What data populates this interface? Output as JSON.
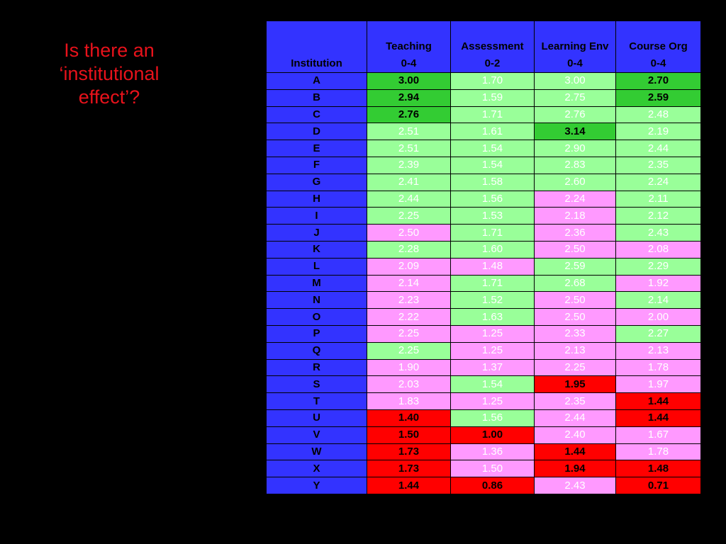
{
  "title": {
    "line1": "Is there an",
    "line2": "‘institutional",
    "line3": "effect’?"
  },
  "colors": {
    "background": "#000000",
    "title": "#e8121b",
    "header": "#3333ff",
    "high": "#33cc33",
    "good": "#99ff99",
    "fair": "#ff99ff",
    "low": "#ff0000"
  },
  "table": {
    "columns": [
      {
        "name": "Institution",
        "range": ""
      },
      {
        "name": "Teaching",
        "range": "0-4"
      },
      {
        "name": "Assessment",
        "range": "0-2"
      },
      {
        "name": "Learning Env",
        "range": "0-4"
      },
      {
        "name": "Course Org",
        "range": "0-4"
      }
    ],
    "rows": [
      {
        "inst": "A",
        "cells": [
          {
            "v": "3.00",
            "c": "high"
          },
          {
            "v": "1.70",
            "c": "good"
          },
          {
            "v": "3.00",
            "c": "good"
          },
          {
            "v": "2.70",
            "c": "high"
          }
        ]
      },
      {
        "inst": "B",
        "cells": [
          {
            "v": "2.94",
            "c": "high"
          },
          {
            "v": "1.59",
            "c": "good"
          },
          {
            "v": "2.75",
            "c": "good"
          },
          {
            "v": "2.59",
            "c": "high"
          }
        ]
      },
      {
        "inst": "C",
        "cells": [
          {
            "v": "2.76",
            "c": "high"
          },
          {
            "v": "1.71",
            "c": "good"
          },
          {
            "v": "2.76",
            "c": "good"
          },
          {
            "v": "2.48",
            "c": "good"
          }
        ]
      },
      {
        "inst": "D",
        "cells": [
          {
            "v": "2.51",
            "c": "good"
          },
          {
            "v": "1.61",
            "c": "good"
          },
          {
            "v": "3.14",
            "c": "high"
          },
          {
            "v": "2.19",
            "c": "good"
          }
        ]
      },
      {
        "inst": "E",
        "cells": [
          {
            "v": "2.51",
            "c": "good"
          },
          {
            "v": "1.54",
            "c": "good"
          },
          {
            "v": "2.90",
            "c": "good"
          },
          {
            "v": "2.44",
            "c": "good"
          }
        ]
      },
      {
        "inst": "F",
        "cells": [
          {
            "v": "2.39",
            "c": "good"
          },
          {
            "v": "1.54",
            "c": "good"
          },
          {
            "v": "2.83",
            "c": "good"
          },
          {
            "v": "2.35",
            "c": "good"
          }
        ]
      },
      {
        "inst": "G",
        "cells": [
          {
            "v": "2.41",
            "c": "good"
          },
          {
            "v": "1.58",
            "c": "good"
          },
          {
            "v": "2.60",
            "c": "good"
          },
          {
            "v": "2.24",
            "c": "good"
          }
        ]
      },
      {
        "inst": "H",
        "cells": [
          {
            "v": "2.44",
            "c": "good"
          },
          {
            "v": "1.56",
            "c": "good"
          },
          {
            "v": "2.24",
            "c": "fair"
          },
          {
            "v": "2.11",
            "c": "good"
          }
        ]
      },
      {
        "inst": "I",
        "cells": [
          {
            "v": "2.25",
            "c": "good"
          },
          {
            "v": "1.53",
            "c": "good"
          },
          {
            "v": "2.18",
            "c": "fair"
          },
          {
            "v": "2.12",
            "c": "good"
          }
        ]
      },
      {
        "inst": "J",
        "cells": [
          {
            "v": "2.50",
            "c": "fair"
          },
          {
            "v": "1.71",
            "c": "good"
          },
          {
            "v": "2.36",
            "c": "fair"
          },
          {
            "v": "2.43",
            "c": "good"
          }
        ]
      },
      {
        "inst": "K",
        "cells": [
          {
            "v": "2.28",
            "c": "good"
          },
          {
            "v": "1.60",
            "c": "good"
          },
          {
            "v": "2.50",
            "c": "fair"
          },
          {
            "v": "2.08",
            "c": "fair"
          }
        ]
      },
      {
        "inst": "L",
        "cells": [
          {
            "v": "2.09",
            "c": "fair"
          },
          {
            "v": "1.48",
            "c": "fair"
          },
          {
            "v": "2.59",
            "c": "good"
          },
          {
            "v": "2.29",
            "c": "good"
          }
        ]
      },
      {
        "inst": "M",
        "cells": [
          {
            "v": "2.14",
            "c": "fair"
          },
          {
            "v": "1.71",
            "c": "good"
          },
          {
            "v": "2.68",
            "c": "good"
          },
          {
            "v": "1.92",
            "c": "fair"
          }
        ]
      },
      {
        "inst": "N",
        "cells": [
          {
            "v": "2.23",
            "c": "fair"
          },
          {
            "v": "1.52",
            "c": "good"
          },
          {
            "v": "2.50",
            "c": "fair"
          },
          {
            "v": "2.14",
            "c": "good"
          }
        ]
      },
      {
        "inst": "O",
        "cells": [
          {
            "v": "2.22",
            "c": "fair"
          },
          {
            "v": "1.63",
            "c": "good"
          },
          {
            "v": "2.50",
            "c": "fair"
          },
          {
            "v": "2.00",
            "c": "fair"
          }
        ]
      },
      {
        "inst": "P",
        "cells": [
          {
            "v": "2.25",
            "c": "fair"
          },
          {
            "v": "1.25",
            "c": "fair"
          },
          {
            "v": "2.33",
            "c": "fair"
          },
          {
            "v": "2.27",
            "c": "good"
          }
        ]
      },
      {
        "inst": "Q",
        "cells": [
          {
            "v": "2.25",
            "c": "good"
          },
          {
            "v": "1.25",
            "c": "fair"
          },
          {
            "v": "2.13",
            "c": "fair"
          },
          {
            "v": "2.13",
            "c": "fair"
          }
        ]
      },
      {
        "inst": "R",
        "cells": [
          {
            "v": "1.90",
            "c": "fair"
          },
          {
            "v": "1.37",
            "c": "fair"
          },
          {
            "v": "2.25",
            "c": "fair"
          },
          {
            "v": "1.78",
            "c": "fair"
          }
        ]
      },
      {
        "inst": "S",
        "cells": [
          {
            "v": "2.03",
            "c": "fair"
          },
          {
            "v": "1.54",
            "c": "good"
          },
          {
            "v": "1.95",
            "c": "low"
          },
          {
            "v": "1.97",
            "c": "fair"
          }
        ]
      },
      {
        "inst": "T",
        "cells": [
          {
            "v": "1.83",
            "c": "fair"
          },
          {
            "v": "1.25",
            "c": "fair"
          },
          {
            "v": "2.35",
            "c": "fair"
          },
          {
            "v": "1.44",
            "c": "low"
          }
        ]
      },
      {
        "inst": "U",
        "cells": [
          {
            "v": "1.40",
            "c": "low"
          },
          {
            "v": "1.56",
            "c": "good"
          },
          {
            "v": "2.44",
            "c": "fair"
          },
          {
            "v": "1.44",
            "c": "low"
          }
        ]
      },
      {
        "inst": "V",
        "cells": [
          {
            "v": "1.50",
            "c": "low"
          },
          {
            "v": "1.00",
            "c": "low"
          },
          {
            "v": "2.40",
            "c": "fair"
          },
          {
            "v": "1.67",
            "c": "fair"
          }
        ]
      },
      {
        "inst": "W",
        "cells": [
          {
            "v": "1.73",
            "c": "low"
          },
          {
            "v": "1.36",
            "c": "fair"
          },
          {
            "v": "1.44",
            "c": "low"
          },
          {
            "v": "1.78",
            "c": "fair"
          }
        ]
      },
      {
        "inst": "X",
        "cells": [
          {
            "v": "1.73",
            "c": "low"
          },
          {
            "v": "1.50",
            "c": "fair"
          },
          {
            "v": "1.94",
            "c": "low"
          },
          {
            "v": "1.48",
            "c": "low"
          }
        ]
      },
      {
        "inst": "Y",
        "cells": [
          {
            "v": "1.44",
            "c": "low"
          },
          {
            "v": "0.86",
            "c": "low"
          },
          {
            "v": "2.43",
            "c": "fair"
          },
          {
            "v": "0.71",
            "c": "low"
          }
        ]
      }
    ]
  }
}
